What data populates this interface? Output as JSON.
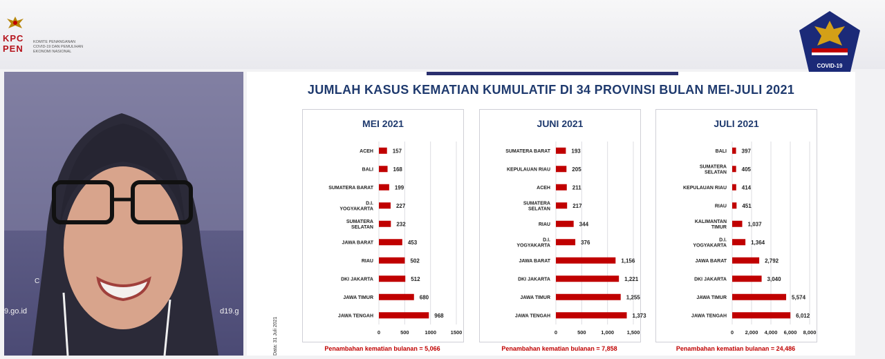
{
  "header": {
    "org_letters": [
      "KPC",
      "PEN"
    ],
    "org_name": [
      "KOMITE PENANGANAN",
      "COVID-19 DAN PEMULIHAN",
      "EKONOMI NASIONAL"
    ],
    "emblem_icon": "garuda-emblem-icon",
    "satgas_logo_icon": "satgas-covid19-shield-icon",
    "satgas_logo_text": "COVID-19"
  },
  "video": {
    "left_fragment": "C",
    "left_url_fragment": "9.go.id",
    "right_url_fragment": "d19.g"
  },
  "slide": {
    "title": "JUMLAH KASUS KEMATIAN KUMULATIF DI 34 PROVINSI BULAN MEI-JULI 2021",
    "side_note": "Data: 31 Juli 2021",
    "accent_color": "#c00000",
    "title_color": "#1f3a6e"
  },
  "chart_data": [
    {
      "type": "bar",
      "orientation": "horizontal",
      "title": "MEI 2021",
      "categories": [
        "ACEH",
        "BALI",
        "SUMATERA BARAT",
        "D.I. YOGYAKARTA",
        "SUMATERA SELATAN",
        "JAWA BARAT",
        "RIAU",
        "DKI JAKARTA",
        "JAWA TIMUR",
        "JAWA TENGAH"
      ],
      "values": [
        157,
        168,
        199,
        227,
        232,
        453,
        502,
        512,
        680,
        968
      ],
      "data_labels": [
        "157",
        "168",
        "199",
        "227",
        "232",
        "453",
        "502",
        "512",
        "680",
        "968"
      ],
      "xlim": [
        0,
        1500
      ],
      "xticks": [
        0,
        500,
        1000,
        1500
      ],
      "xtick_labels": [
        "0",
        "500",
        "1000",
        "1500"
      ],
      "footnote": "Penambahan kematian bulanan = 5,066",
      "grid": true
    },
    {
      "type": "bar",
      "orientation": "horizontal",
      "title": "JUNI 2021",
      "categories": [
        "SUMATERA BARAT",
        "KEPULAUAN RIAU",
        "ACEH",
        "SUMATERA SELATAN",
        "RIAU",
        "D.I. YOGYAKARTA",
        "JAWA BARAT",
        "DKI JAKARTA",
        "JAWA TIMUR",
        "JAWA TENGAH"
      ],
      "values": [
        193,
        205,
        211,
        217,
        344,
        376,
        1156,
        1221,
        1255,
        1373
      ],
      "data_labels": [
        "193",
        "205",
        "211",
        "217",
        "344",
        "376",
        "1,156",
        "1,221",
        "1,255",
        "1,373"
      ],
      "xlim": [
        0,
        1500
      ],
      "xticks": [
        0,
        500,
        1000,
        1500
      ],
      "xtick_labels": [
        "0",
        "500",
        "1,000",
        "1,500"
      ],
      "footnote": "Penambahan kematian bulanan = 7,858",
      "grid": true
    },
    {
      "type": "bar",
      "orientation": "horizontal",
      "title": "JULI 2021",
      "categories": [
        "BALI",
        "SUMATERA SELATAN",
        "KEPULAUAN RIAU",
        "RIAU",
        "KALIMANTAN TIMUR",
        "D.I. YOGYAKARTA",
        "JAWA BARAT",
        "DKI JAKARTA",
        "JAWA TIMUR",
        "JAWA TENGAH"
      ],
      "values": [
        397,
        405,
        414,
        451,
        1037,
        1364,
        2792,
        3040,
        5574,
        6012
      ],
      "data_labels": [
        "397",
        "405",
        "414",
        "451",
        "1,037",
        "1,364",
        "2,792",
        "3,040",
        "5,574",
        "6,012"
      ],
      "xlim": [
        0,
        8000
      ],
      "xticks": [
        0,
        2000,
        4000,
        6000,
        8000
      ],
      "xtick_labels": [
        "0",
        "2,000",
        "4,000",
        "6,000",
        "8,000"
      ],
      "footnote": "Penambahan kematian bulanan = 24,486",
      "grid": true
    }
  ]
}
